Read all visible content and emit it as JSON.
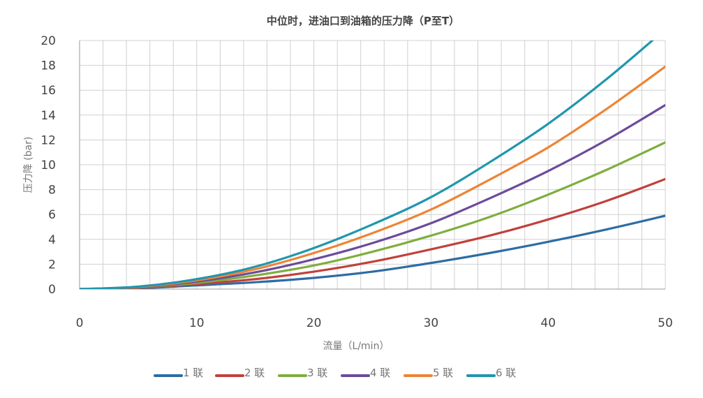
{
  "chart_data": {
    "type": "line",
    "title": "中位时，进油口到油箱的压力降（P至T）",
    "xlabel": "流量（L/min）",
    "ylabel": "压力降 (bar)",
    "xlim": [
      0,
      50
    ],
    "ylim": [
      0,
      20
    ],
    "xticks": [
      0,
      10,
      20,
      30,
      40,
      50
    ],
    "yticks": [
      0,
      2,
      4,
      6,
      8,
      10,
      12,
      14,
      16,
      18,
      20
    ],
    "grid": true,
    "legend_position": "bottom",
    "x": [
      0,
      5,
      10,
      15,
      20,
      25,
      30,
      35,
      40,
      45,
      50
    ],
    "series": [
      {
        "name": "1 联",
        "color": "#2e6ca4",
        "values": [
          0,
          0.07,
          0.3,
          0.55,
          0.9,
          1.4,
          2.1,
          2.9,
          3.8,
          4.8,
          5.9
        ]
      },
      {
        "name": "2 联",
        "color": "#c0413c",
        "values": [
          0,
          0.1,
          0.4,
          0.8,
          1.4,
          2.2,
          3.2,
          4.3,
          5.6,
          7.1,
          8.85
        ]
      },
      {
        "name": "3 联",
        "color": "#7fae3e",
        "values": [
          0,
          0.13,
          0.5,
          1.1,
          1.9,
          3.0,
          4.3,
          5.8,
          7.6,
          9.6,
          11.8
        ]
      },
      {
        "name": "4 联",
        "color": "#6c4b9a",
        "values": [
          0,
          0.15,
          0.6,
          1.35,
          2.4,
          3.7,
          5.3,
          7.3,
          9.5,
          12.0,
          14.8
        ]
      },
      {
        "name": "5 联",
        "color": "#ee8434",
        "values": [
          0,
          0.18,
          0.7,
          1.6,
          2.9,
          4.5,
          6.4,
          8.8,
          11.4,
          14.5,
          17.9
        ]
      },
      {
        "name": "6 联",
        "color": "#1f97ad",
        "values": [
          0,
          0.2,
          0.8,
          1.8,
          3.3,
          5.2,
          7.4,
          10.2,
          13.3,
          16.9,
          20.9
        ]
      }
    ]
  }
}
